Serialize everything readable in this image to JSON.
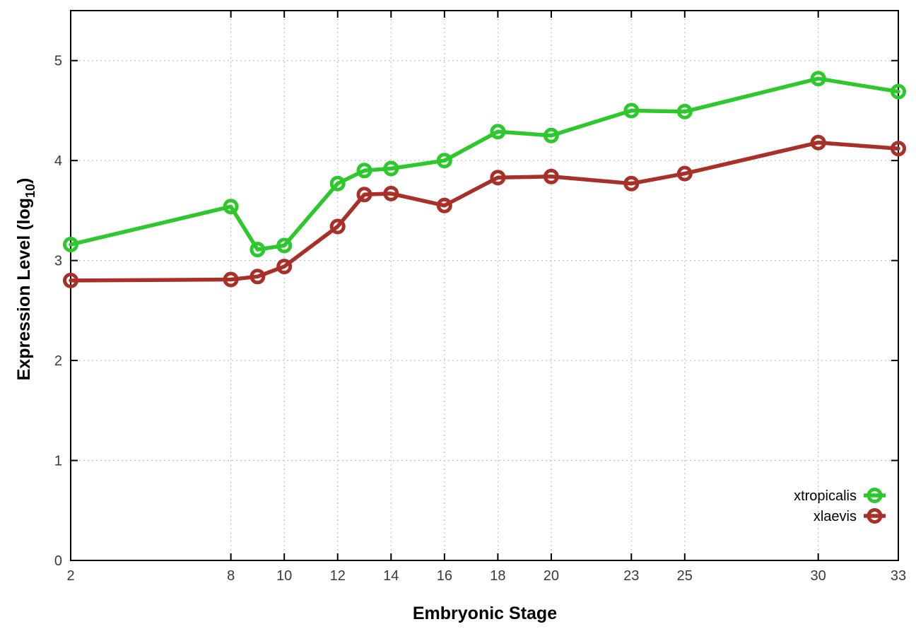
{
  "chart_data": {
    "type": "line",
    "title": "",
    "xlabel": "Embryonic Stage",
    "ylabel_main": "Expression Level (log",
    "ylabel_sub": "10",
    "ylabel_close": ")",
    "x": [
      2,
      8,
      9,
      10,
      12,
      13,
      14,
      16,
      18,
      20,
      23,
      25,
      30,
      33
    ],
    "x_ticks": [
      2,
      8,
      10,
      12,
      14,
      16,
      18,
      20,
      23,
      25,
      30,
      33
    ],
    "y_ticks": [
      0,
      1,
      2,
      3,
      4,
      5
    ],
    "xlim": [
      2,
      33
    ],
    "ylim": [
      0,
      5.5
    ],
    "grid": true,
    "legend_position": "bottom-right",
    "series": [
      {
        "name": "xtropicalis",
        "color": "#2cc82c",
        "values": [
          3.16,
          3.54,
          3.11,
          3.15,
          3.77,
          3.9,
          3.92,
          4.0,
          4.29,
          4.25,
          4.5,
          4.49,
          4.82,
          4.69
        ]
      },
      {
        "name": "xlaevis",
        "color": "#a93028",
        "values": [
          2.8,
          2.81,
          2.84,
          2.94,
          3.34,
          3.66,
          3.67,
          3.55,
          3.83,
          3.84,
          3.77,
          3.87,
          4.18,
          4.12
        ]
      }
    ]
  },
  "colors": {
    "background": "#ffffff",
    "axis": "#000000",
    "grid": "#b8b8b8",
    "tick_label": "#3a3a3a"
  }
}
